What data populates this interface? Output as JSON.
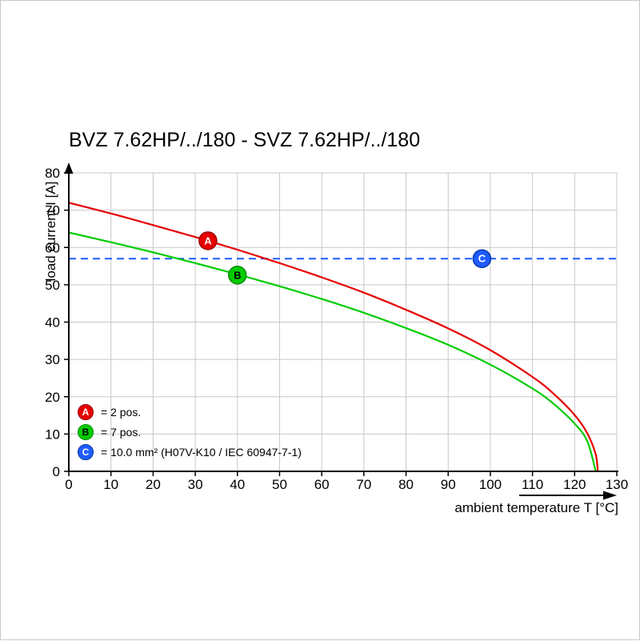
{
  "chart_data": {
    "type": "line",
    "title": "BVZ 7.62HP/../180 - SVZ 7.62HP/../180",
    "xlabel": "ambient temperature T [°C]",
    "ylabel": "load current I [A]",
    "xlim": [
      0,
      130
    ],
    "ylim": [
      0,
      80
    ],
    "x_ticks": [
      0,
      10,
      20,
      30,
      40,
      50,
      60,
      70,
      80,
      90,
      100,
      110,
      120,
      130
    ],
    "y_ticks": [
      0,
      10,
      20,
      30,
      40,
      50,
      60,
      70,
      80
    ],
    "grid": true,
    "legend_position": "lower-left-inside",
    "series": [
      {
        "name": "2 pos.",
        "marker": "A",
        "color": "#e60000",
        "style": "solid",
        "points": [
          [
            0,
            72
          ],
          [
            10,
            69.1
          ],
          [
            20,
            66.0
          ],
          [
            30,
            62.8
          ],
          [
            40,
            59.4
          ],
          [
            50,
            55.8
          ],
          [
            60,
            52.0
          ],
          [
            70,
            47.9
          ],
          [
            80,
            43.3
          ],
          [
            90,
            38.3
          ],
          [
            100,
            32.5
          ],
          [
            110,
            25.3
          ],
          [
            115,
            20.8
          ],
          [
            120,
            15.1
          ],
          [
            123,
            10.2
          ],
          [
            125,
            4.5
          ],
          [
            125.5,
            0
          ]
        ]
      },
      {
        "name": "7 pos.",
        "marker": "B",
        "color": "#00cc00",
        "style": "solid",
        "points": [
          [
            0,
            64
          ],
          [
            10,
            61.4
          ],
          [
            20,
            58.7
          ],
          [
            30,
            55.8
          ],
          [
            40,
            52.8
          ],
          [
            50,
            49.6
          ],
          [
            60,
            46.2
          ],
          [
            70,
            42.5
          ],
          [
            80,
            38.4
          ],
          [
            90,
            33.9
          ],
          [
            100,
            28.6
          ],
          [
            110,
            22.2
          ],
          [
            115,
            18.1
          ],
          [
            120,
            12.8
          ],
          [
            123,
            8.1
          ],
          [
            125,
            0
          ]
        ]
      },
      {
        "name": "10.0 mm² (H07V-K10 / IEC 60947-7-1)",
        "marker": "C",
        "color": "#1e5cff",
        "style": "dashed",
        "points": [
          [
            0,
            57
          ],
          [
            130,
            57
          ]
        ]
      }
    ],
    "markers": [
      {
        "label": "A",
        "x": 33,
        "y": 61.8,
        "fill": "#e60000",
        "stroke": "#9c0000",
        "text_color": "#ffffff"
      },
      {
        "label": "B",
        "x": 40,
        "y": 52.6,
        "fill": "#00cc00",
        "stroke": "#008a00",
        "text_color": "#000000"
      },
      {
        "label": "C",
        "x": 98,
        "y": 57,
        "fill": "#1e5cff",
        "stroke": "#0036a8",
        "text_color": "#ffffff"
      }
    ],
    "legend": [
      {
        "label": "A",
        "text": "= 2 pos.",
        "fill": "#e60000",
        "stroke": "#9c0000",
        "text_color": "#ffffff"
      },
      {
        "label": "B",
        "text": "= 7 pos.",
        "fill": "#00cc00",
        "stroke": "#008a00",
        "text_color": "#000000"
      },
      {
        "label": "C",
        "text": "= 10.0 mm² (H07V-K10 / IEC 60947-7-1)",
        "fill": "#1e5cff",
        "stroke": "#0036a8",
        "text_color": "#ffffff"
      }
    ],
    "colors": {
      "grid": "#c8c8c8",
      "axis": "#000000",
      "background": "#ffffff"
    }
  }
}
